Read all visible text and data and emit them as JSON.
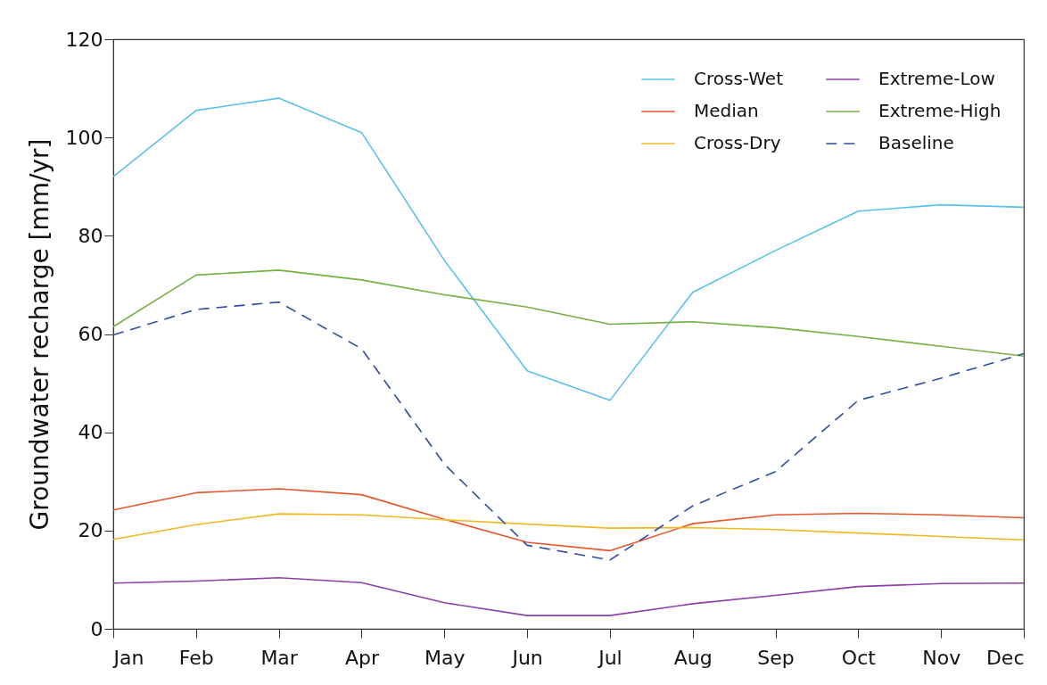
{
  "chart_data": {
    "type": "line",
    "ylabel": "Groundwater recharge [mm/yr]",
    "categories": [
      "Jan",
      "Feb",
      "Mar",
      "Apr",
      "May",
      "Jun",
      "Jul",
      "Aug",
      "Sep",
      "Oct",
      "Nov",
      "Dec"
    ],
    "ylim": [
      0,
      120
    ],
    "yticks": [
      0,
      20,
      40,
      60,
      80,
      100,
      120
    ],
    "grid": false,
    "legend": "top right",
    "marker": "none",
    "series": [
      {
        "name": "Cross-Wet",
        "color": "#5bc0eb",
        "line_style": "solid",
        "values": [
          92,
          105.5,
          108,
          101,
          75,
          52.5,
          46.5,
          68.5,
          77,
          85,
          86.3,
          85.8
        ]
      },
      {
        "name": "Median",
        "color": "#e8572a",
        "line_style": "solid",
        "values": [
          24.2,
          27.7,
          28.5,
          27.3,
          22.3,
          17.6,
          15.9,
          21.4,
          23.2,
          23.5,
          23.2,
          22.6
        ]
      },
      {
        "name": "Cross-Dry",
        "color": "#f2b824",
        "line_style": "solid",
        "values": [
          18.2,
          21.2,
          23.4,
          23.2,
          22.2,
          21.3,
          20.5,
          20.6,
          20.2,
          19.5,
          18.8,
          18.1
        ]
      },
      {
        "name": "Extreme-Low",
        "color": "#8e3fa8",
        "line_style": "solid",
        "values": [
          9.3,
          9.7,
          10.4,
          9.4,
          5.3,
          2.7,
          2.7,
          5.1,
          6.8,
          8.6,
          9.2,
          9.3
        ]
      },
      {
        "name": "Extreme-High",
        "color": "#77b043",
        "line_style": "solid",
        "values": [
          61.5,
          72,
          73,
          71,
          68,
          65.5,
          62,
          62.5,
          61.3,
          59.5,
          57.5,
          55.5
        ]
      },
      {
        "name": "Baseline",
        "color": "#2e4ea3",
        "line_style": "dashed",
        "values": [
          59.8,
          65,
          66.5,
          57,
          33.5,
          17,
          14,
          25,
          32,
          46.5,
          51,
          56
        ]
      }
    ]
  }
}
